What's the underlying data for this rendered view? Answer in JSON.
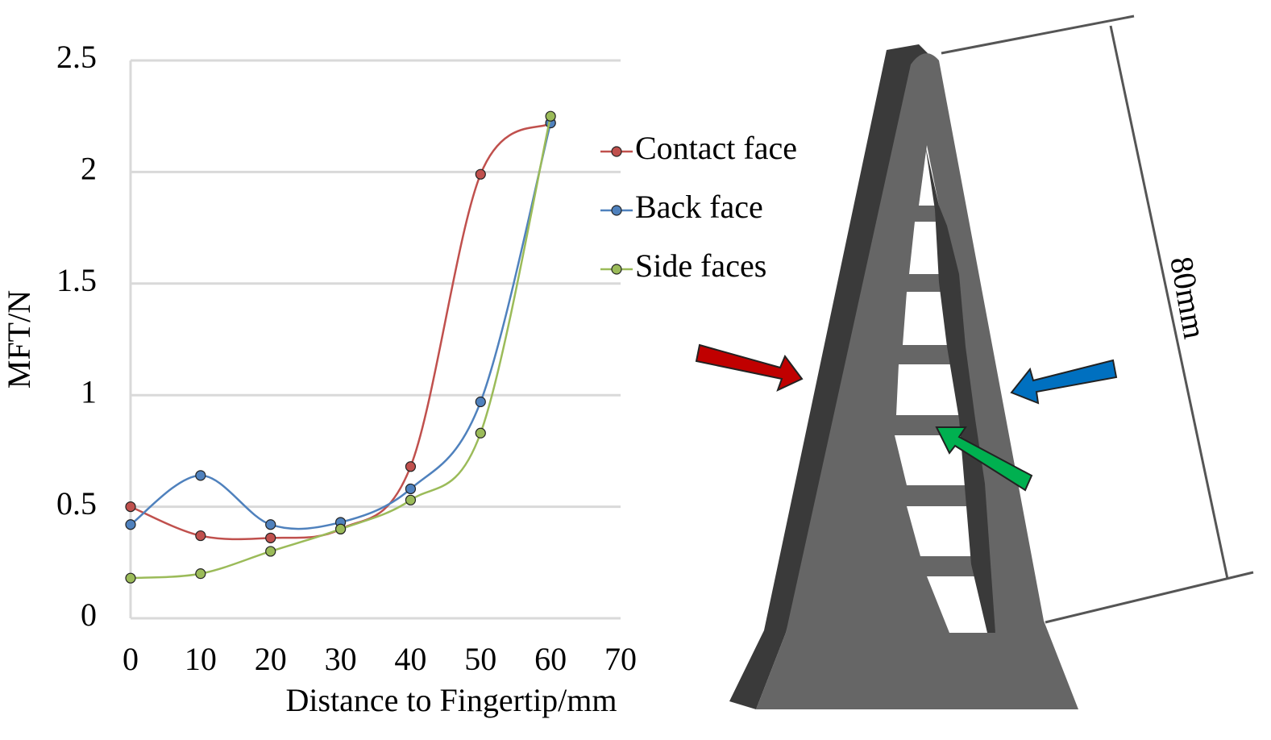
{
  "chart_data": {
    "type": "line",
    "x_label": "Distance to Fingertip/mm",
    "y_label": "MFT/N",
    "x": [
      0,
      10,
      20,
      30,
      40,
      50,
      60
    ],
    "xlim": [
      0,
      70
    ],
    "xticks": [
      0,
      10,
      20,
      30,
      40,
      50,
      60,
      70
    ],
    "ylim": [
      0,
      2.5
    ],
    "yticks": [
      0,
      0.5,
      1,
      1.5,
      2,
      2.5
    ],
    "grid": true,
    "smooth": true,
    "legend": "right",
    "series": [
      {
        "name": "Contact face",
        "color": "#c0504d",
        "values": [
          0.5,
          0.37,
          0.36,
          0.4,
          0.68,
          1.99,
          2.22
        ]
      },
      {
        "name": "Back face",
        "color": "#4f81bd",
        "values": [
          0.42,
          0.64,
          0.42,
          0.43,
          0.58,
          0.97,
          2.22
        ]
      },
      {
        "name": "Side faces",
        "color": "#9bbb59",
        "values": [
          0.18,
          0.2,
          0.3,
          0.4,
          0.53,
          0.83,
          2.25
        ]
      }
    ]
  },
  "figure": {
    "dimension_label": "80mm"
  }
}
